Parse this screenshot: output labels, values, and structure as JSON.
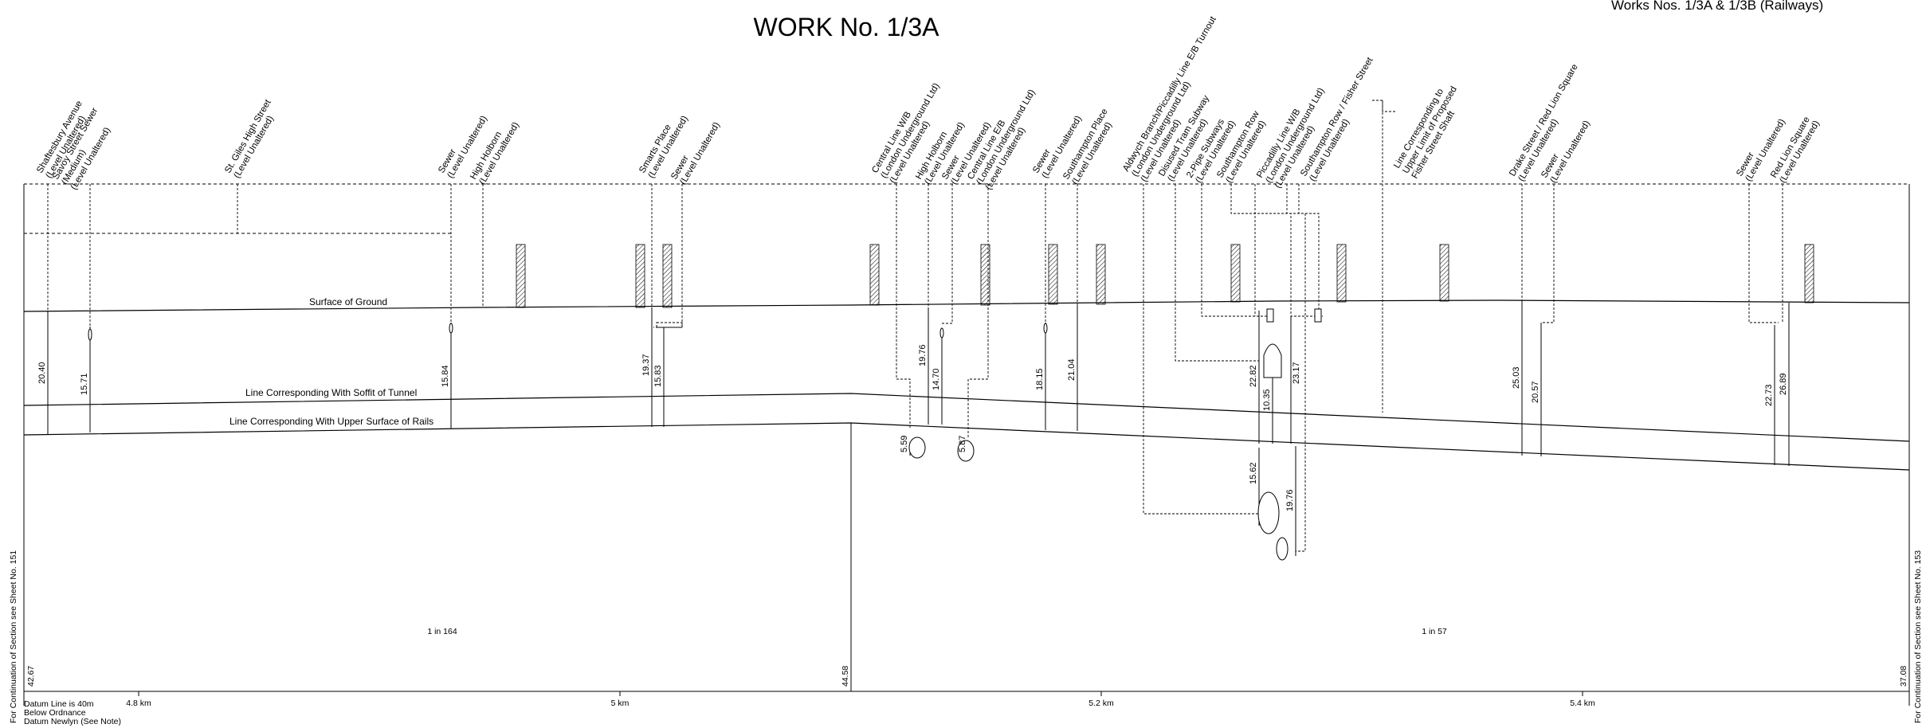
{
  "title": "WORK No. 1/3A",
  "works": "Works Nos. 1/3A & 1/3B (Railways)",
  "lines": {
    "ground": "Surface of Ground",
    "soffit": "Line Corresponding With Soffit of Tunnel",
    "rails": "Line Corresponding With Upper Surface of Rails"
  },
  "gradients": {
    "left": "1 in 164",
    "right": "1 in 57"
  },
  "datum_levels": {
    "start": "42.67",
    "mid": "44.58",
    "end": "37.08"
  },
  "chainage": [
    "4.8 km",
    "5 km",
    "5.2 km",
    "5.4 km"
  ],
  "datum_note": [
    "Datum Line is 40m",
    "Below Ordnance",
    "Datum Newlyn (See Note)"
  ],
  "side_notes": {
    "left": "For Continuation of Section see Sheet No. 151",
    "right": "For Continuation of Section see Sheet No. 153"
  },
  "dimensions": [
    "20.40",
    "15.71",
    "15.84",
    "19.37",
    "15.83",
    "5.59",
    "19.76",
    "14.70",
    "5.87",
    "18.15",
    "21.04",
    "22.82",
    "10.35",
    "23.17",
    "15.62",
    "19.76",
    "25.03",
    "20.57",
    "22.73",
    "26.89"
  ],
  "features": [
    [
      "Shaftesbury Avenue",
      "(Level Unaltered)"
    ],
    [
      "Savoy Street Sewer",
      "(Medium)",
      "(Level Unaltered)"
    ],
    [
      "St. Giles High Street",
      "(Level Unaltered)"
    ],
    [
      "Sewer",
      "(Level Unaltered)"
    ],
    [
      "High Holborn",
      "(Level Unaltered)"
    ],
    [
      "Smarts Place",
      "(Level Unaltered)"
    ],
    [
      "Sewer",
      "(Level Unaltered)"
    ],
    [
      "Central Line W/B",
      "(London Underground Ltd)",
      "(Level Unaltered)"
    ],
    [
      "High Holborn",
      "(Level Unaltered)"
    ],
    [
      "Sewer",
      "(Level Unaltered)"
    ],
    [
      "Central Line E/B",
      "(London Underground Ltd)",
      "(Level Unaltered)"
    ],
    [
      "Sewer",
      "(Level Unaltered)"
    ],
    [
      "Southampton Place",
      "(Level Unaltered)"
    ],
    [
      "Aldwych Branch/Piccadilly Line E/B Turnout",
      "(London Underground Ltd)",
      "(Level Unaltered)"
    ],
    [
      "Disused Tram Subway",
      "(Level Unaltered)"
    ],
    [
      "2-Pipe Subways",
      "(Level Unaltered)"
    ],
    [
      "Southampton Row",
      "(Level Unaltered)"
    ],
    [
      "Piccadilly Line W/B",
      "(London Underground Ltd)",
      "(Level Unaltered)"
    ],
    [
      "Southampton Row / Fisher Street",
      "(Level Unaltered)"
    ],
    [
      "Line Corresponding to",
      "Upper Limit of Proposed",
      "Fisher Street Shaft"
    ],
    [
      "Drake Street / Red Lion Square",
      "(Level Unaltered)"
    ],
    [
      "Sewer",
      "(Level Unaltered)"
    ],
    [
      "Sewer",
      "(Level Unaltered)"
    ],
    [
      "Red Lion Square",
      "(Level Unaltered)"
    ]
  ]
}
